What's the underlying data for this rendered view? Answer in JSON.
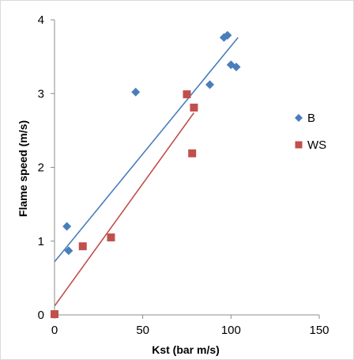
{
  "chart_data": {
    "type": "scatter",
    "xlabel": "Kst (bar m/s)",
    "ylabel": "Flame speed (m/s)",
    "xlim": [
      0,
      150
    ],
    "ylim": [
      0,
      4
    ],
    "xticks": [
      "0",
      "50",
      "100",
      "150"
    ],
    "yticks": [
      "0",
      "1",
      "2",
      "3",
      "4"
    ],
    "legend_position": "right",
    "grid": false,
    "series": [
      {
        "name": "B",
        "color": "#4a7ebb",
        "marker": "diamond",
        "points": [
          {
            "x": 7,
            "y": 1.2
          },
          {
            "x": 8,
            "y": 0.87
          },
          {
            "x": 46,
            "y": 3.02
          },
          {
            "x": 88,
            "y": 3.12
          },
          {
            "x": 96,
            "y": 3.76
          },
          {
            "x": 98,
            "y": 3.79
          },
          {
            "x": 100,
            "y": 3.39
          },
          {
            "x": 103,
            "y": 3.36
          }
        ],
        "trendline": {
          "x0": 0,
          "y0": 0.72,
          "x1": 104,
          "y1": 3.76
        }
      },
      {
        "name": "WS",
        "color": "#c0504d",
        "marker": "square",
        "points": [
          {
            "x": 0,
            "y": 0.01
          },
          {
            "x": 16,
            "y": 0.93
          },
          {
            "x": 32,
            "y": 1.05
          },
          {
            "x": 75,
            "y": 2.99
          },
          {
            "x": 78,
            "y": 2.19
          },
          {
            "x": 79,
            "y": 2.81
          }
        ],
        "trendline": {
          "x0": 0,
          "y0": 0.12,
          "x1": 79,
          "y1": 2.74
        }
      }
    ]
  }
}
